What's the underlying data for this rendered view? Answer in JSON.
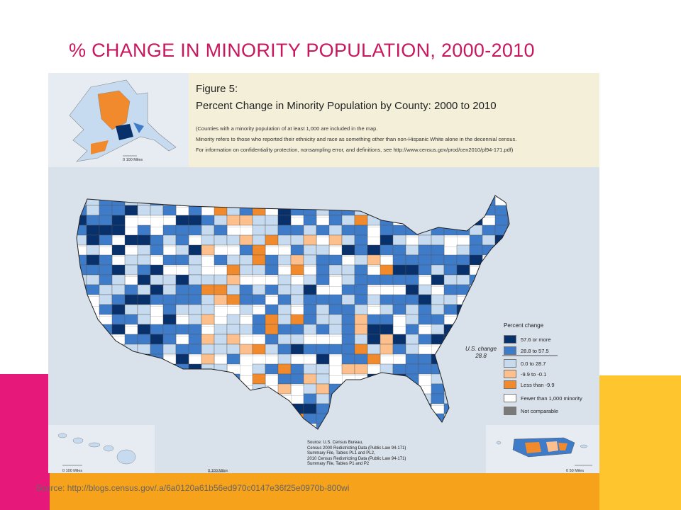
{
  "slide": {
    "title": "% CHANGE IN MINORITY POPULATION, 2000-2010",
    "source_url": "Source: http://blogs.census.gov/.a/6a0120a61b56ed970c0147e36f25e0970b-800wi"
  },
  "figure": {
    "number": "Figure 5:",
    "title": "Percent Change in Minority Population by County: 2000 to 2010",
    "notes": [
      "(Counties with a minority population of at least 1,000 are included in the map.",
      "Minority refers to those who reported their ethnicity and race as something other than non-Hispanic White alone in the decennial census.",
      "For information on confidentiality protection, nonsampling error, and definitions, see http://www.census.gov/prod/cen2010/pl94-171.pdf)"
    ]
  },
  "legend": {
    "title": "Percent change",
    "us_change_label": "U.S. change",
    "us_change_value": "28.8",
    "items": [
      {
        "label": "57.6 or more",
        "color": "#08306b"
      },
      {
        "label": "28.8 to 57.5",
        "color": "#3e7cc9"
      },
      {
        "label": "0.0 to 28.7",
        "color": "#c6dbef"
      },
      {
        "label": "-9.9 to -0.1",
        "color": "#fdc08c"
      },
      {
        "label": "Less than -9.9",
        "color": "#f08a2c"
      },
      {
        "label": "Fewer than 1,000 minority",
        "color": "#ffffff"
      },
      {
        "label": "Not comparable",
        "color": "#7a7a7a"
      }
    ]
  },
  "source": {
    "lines": [
      "Source: U.S. Census Bureau,",
      "Census 2000 Redistricting Data (Public Law 94-171)",
      "Summary File, Tables PL1 and PL2,",
      "2010 Census Redistricting Data (Public Law 94-171)",
      "Summary File, Tables P1 and P2"
    ]
  },
  "scales": {
    "alaska": "0   100 Miles",
    "hawaii": "0   100 Miles",
    "conus": "0   100 Miles",
    "puerto_rico": "0      50 Miles"
  }
}
